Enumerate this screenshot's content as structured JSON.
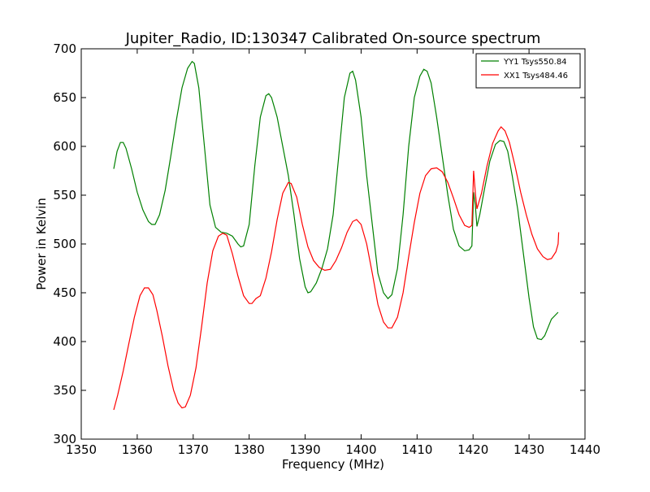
{
  "chart_data": {
    "type": "line",
    "title": "Jupiter_Radio, ID:130347 Calibrated On-source spectrum",
    "xlabel": "Frequency (MHz)",
    "ylabel": "Power in Kelvin",
    "xlim": [
      1350,
      1440
    ],
    "ylim": [
      300,
      700
    ],
    "xticks": [
      1350,
      1360,
      1370,
      1380,
      1390,
      1400,
      1410,
      1420,
      1430,
      1440
    ],
    "yticks": [
      300,
      350,
      400,
      450,
      500,
      550,
      600,
      650,
      700
    ],
    "grid": false,
    "legend": "top-right",
    "series": [
      {
        "name": "YY1 Tsys550.84",
        "color": "#008000",
        "points": [
          [
            1355.8,
            577
          ],
          [
            1356.4,
            595
          ],
          [
            1357.0,
            604
          ],
          [
            1357.5,
            604
          ],
          [
            1358.0,
            598
          ],
          [
            1359.0,
            577
          ],
          [
            1360.0,
            553
          ],
          [
            1361.0,
            535
          ],
          [
            1362.0,
            523
          ],
          [
            1362.6,
            520
          ],
          [
            1363.2,
            520
          ],
          [
            1364.0,
            530
          ],
          [
            1365.0,
            555
          ],
          [
            1366.0,
            590
          ],
          [
            1367.0,
            627
          ],
          [
            1368.0,
            660
          ],
          [
            1369.0,
            680
          ],
          [
            1369.8,
            687
          ],
          [
            1370.2,
            685
          ],
          [
            1371.0,
            660
          ],
          [
            1372.0,
            600
          ],
          [
            1373.0,
            540
          ],
          [
            1374.0,
            517
          ],
          [
            1375.0,
            512
          ],
          [
            1376.0,
            511
          ],
          [
            1377.0,
            508
          ],
          [
            1378.0,
            500
          ],
          [
            1378.5,
            497
          ],
          [
            1379.0,
            498
          ],
          [
            1380.0,
            520
          ],
          [
            1381.0,
            580
          ],
          [
            1382.0,
            630
          ],
          [
            1383.0,
            652
          ],
          [
            1383.5,
            654
          ],
          [
            1384.0,
            650
          ],
          [
            1385.0,
            630
          ],
          [
            1386.0,
            600
          ],
          [
            1387.0,
            570
          ],
          [
            1388.0,
            530
          ],
          [
            1389.0,
            485
          ],
          [
            1390.0,
            456
          ],
          [
            1390.5,
            450
          ],
          [
            1391.0,
            451
          ],
          [
            1392.0,
            460
          ],
          [
            1393.0,
            475
          ],
          [
            1394.0,
            495
          ],
          [
            1395.0,
            530
          ],
          [
            1396.0,
            590
          ],
          [
            1397.0,
            650
          ],
          [
            1398.0,
            675
          ],
          [
            1398.5,
            677
          ],
          [
            1399.0,
            668
          ],
          [
            1400.0,
            630
          ],
          [
            1401.0,
            570
          ],
          [
            1402.0,
            520
          ],
          [
            1403.0,
            470
          ],
          [
            1404.0,
            450
          ],
          [
            1404.8,
            444
          ],
          [
            1405.5,
            448
          ],
          [
            1406.5,
            475
          ],
          [
            1407.5,
            530
          ],
          [
            1408.5,
            600
          ],
          [
            1409.5,
            650
          ],
          [
            1410.5,
            672
          ],
          [
            1411.2,
            679
          ],
          [
            1411.8,
            677
          ],
          [
            1412.5,
            665
          ],
          [
            1413.5,
            630
          ],
          [
            1414.5,
            590
          ],
          [
            1415.5,
            550
          ],
          [
            1416.5,
            515
          ],
          [
            1417.5,
            498
          ],
          [
            1418.5,
            493
          ],
          [
            1419.3,
            494
          ],
          [
            1419.8,
            498
          ],
          [
            1420.1,
            553
          ],
          [
            1420.4,
            540
          ],
          [
            1420.7,
            518
          ],
          [
            1421.2,
            530
          ],
          [
            1422.0,
            555
          ],
          [
            1423.0,
            585
          ],
          [
            1424.0,
            602
          ],
          [
            1424.8,
            606
          ],
          [
            1425.5,
            605
          ],
          [
            1426.2,
            595
          ],
          [
            1427.0,
            570
          ],
          [
            1428.0,
            535
          ],
          [
            1429.0,
            490
          ],
          [
            1430.0,
            445
          ],
          [
            1430.8,
            415
          ],
          [
            1431.5,
            403
          ],
          [
            1432.2,
            402
          ],
          [
            1432.8,
            406
          ],
          [
            1434.0,
            423
          ],
          [
            1435.2,
            430
          ]
        ]
      },
      {
        "name": "XX1 Tsys484.46",
        "color": "#ff0000",
        "points": [
          [
            1355.8,
            330
          ],
          [
            1356.5,
            345
          ],
          [
            1357.5,
            370
          ],
          [
            1358.5,
            398
          ],
          [
            1359.5,
            425
          ],
          [
            1360.5,
            447
          ],
          [
            1361.3,
            455
          ],
          [
            1362.0,
            455
          ],
          [
            1362.8,
            448
          ],
          [
            1363.5,
            432
          ],
          [
            1364.5,
            405
          ],
          [
            1365.5,
            375
          ],
          [
            1366.5,
            350
          ],
          [
            1367.3,
            337
          ],
          [
            1368.0,
            332
          ],
          [
            1368.6,
            333
          ],
          [
            1369.5,
            345
          ],
          [
            1370.5,
            373
          ],
          [
            1371.5,
            415
          ],
          [
            1372.5,
            460
          ],
          [
            1373.5,
            493
          ],
          [
            1374.5,
            508
          ],
          [
            1375.3,
            511
          ],
          [
            1376.0,
            509
          ],
          [
            1377.0,
            490
          ],
          [
            1378.0,
            467
          ],
          [
            1379.0,
            447
          ],
          [
            1380.0,
            439
          ],
          [
            1380.5,
            439
          ],
          [
            1381.2,
            444
          ],
          [
            1382.0,
            447
          ],
          [
            1383.0,
            465
          ],
          [
            1384.0,
            492
          ],
          [
            1385.0,
            525
          ],
          [
            1386.0,
            552
          ],
          [
            1387.0,
            563
          ],
          [
            1387.5,
            562
          ],
          [
            1388.5,
            548
          ],
          [
            1389.5,
            520
          ],
          [
            1390.5,
            497
          ],
          [
            1391.5,
            483
          ],
          [
            1392.5,
            476
          ],
          [
            1393.5,
            473
          ],
          [
            1394.5,
            474
          ],
          [
            1395.5,
            483
          ],
          [
            1396.5,
            496
          ],
          [
            1397.5,
            512
          ],
          [
            1398.5,
            523
          ],
          [
            1399.2,
            525
          ],
          [
            1400.0,
            520
          ],
          [
            1401.0,
            500
          ],
          [
            1402.0,
            470
          ],
          [
            1403.0,
            438
          ],
          [
            1404.0,
            420
          ],
          [
            1404.8,
            414
          ],
          [
            1405.5,
            414
          ],
          [
            1406.5,
            425
          ],
          [
            1407.5,
            450
          ],
          [
            1408.5,
            487
          ],
          [
            1409.5,
            522
          ],
          [
            1410.5,
            552
          ],
          [
            1411.5,
            570
          ],
          [
            1412.5,
            577
          ],
          [
            1413.5,
            578
          ],
          [
            1414.5,
            574
          ],
          [
            1415.5,
            563
          ],
          [
            1416.5,
            547
          ],
          [
            1417.5,
            530
          ],
          [
            1418.5,
            519
          ],
          [
            1419.3,
            517
          ],
          [
            1419.8,
            519
          ],
          [
            1420.1,
            575
          ],
          [
            1420.4,
            553
          ],
          [
            1420.7,
            536
          ],
          [
            1421.5,
            552
          ],
          [
            1422.5,
            580
          ],
          [
            1423.5,
            603
          ],
          [
            1424.5,
            616
          ],
          [
            1425.0,
            620
          ],
          [
            1425.7,
            616
          ],
          [
            1426.5,
            604
          ],
          [
            1427.5,
            580
          ],
          [
            1428.5,
            553
          ],
          [
            1429.5,
            530
          ],
          [
            1430.5,
            510
          ],
          [
            1431.5,
            495
          ],
          [
            1432.5,
            487
          ],
          [
            1433.3,
            484
          ],
          [
            1434.0,
            485
          ],
          [
            1434.8,
            492
          ],
          [
            1435.2,
            500
          ],
          [
            1435.3,
            512
          ]
        ]
      }
    ]
  }
}
